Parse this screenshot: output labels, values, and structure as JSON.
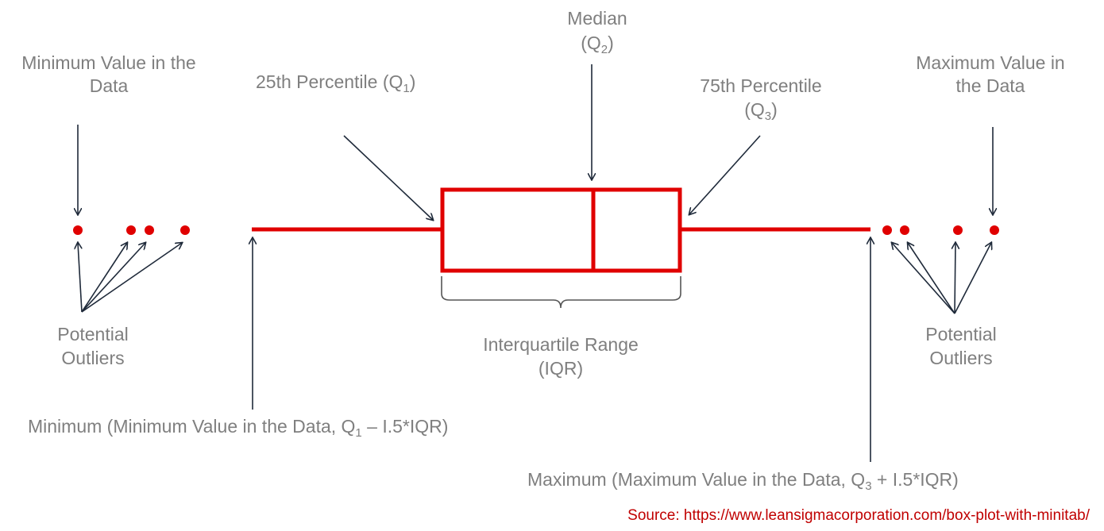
{
  "labels": {
    "median_line1": "Median",
    "median_line2_prefix": "(Q",
    "median_sub": "2",
    "median_line2_suffix": ")",
    "min_value_line1": "Minimum Value in the",
    "min_value_line2": "Data",
    "q1_prefix": "25th Percentile (Q",
    "q1_sub": "1",
    "q1_suffix": ")",
    "q3_line1": "75th Percentile",
    "q3_line2_prefix": "(Q",
    "q3_sub": "3",
    "q3_line2_suffix": ")",
    "max_value_line1": "Maximum Value in",
    "max_value_line2": "the Data",
    "outliers_left_line1": "Potential",
    "outliers_left_line2": "Outliers",
    "outliers_right_line1": "Potential",
    "outliers_right_line2": "Outliers",
    "iqr_line1": "Interquartile Range",
    "iqr_line2": "(IQR)",
    "minimum_prefix": "Minimum (Minimum Value in the Data, Q",
    "minimum_sub": "1",
    "minimum_suffix": " – I.5*IQR)",
    "maximum_prefix": "Maximum (Maximum Value in the Data, Q",
    "maximum_sub": "3",
    "maximum_suffix": " + I.5*IQR)",
    "source": "Source: https://www.leansigmacorporation.com/box-plot-with-minitab/"
  },
  "colors": {
    "box": "#e00000",
    "text": "#7f7f7f",
    "arrow": "#1f2a3a",
    "source": "#c00000"
  }
}
